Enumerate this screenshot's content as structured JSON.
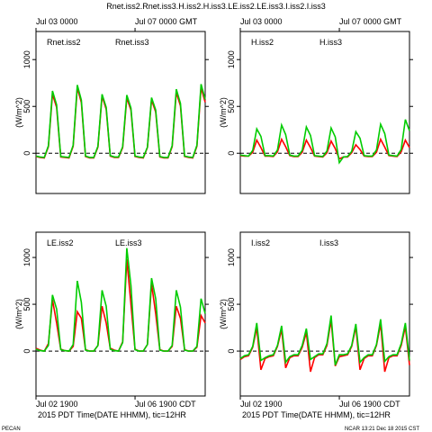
{
  "title": "Rnet.iss2.Rnet.iss3.H.iss2.H.iss3.LE.iss2.LE.iss3.I.iss2.I.iss3",
  "footer_left": "PECAN",
  "footer_right": "NCAR 13:21 Dec 18 2015 CST",
  "chart_data": [
    {
      "type": "line",
      "ylabel": "(W/m^2)",
      "xtick_side": "top",
      "zero_line": 0,
      "xlim": [
        0,
        164
      ],
      "xticks": [
        {
          "value": 0,
          "label": "Jul 03 0000"
        },
        {
          "value": 96,
          "label": "Jul 07 0000 GMT"
        }
      ],
      "ylim": [
        -430,
        1300
      ],
      "yticks": [
        0,
        500,
        1000
      ],
      "x": [
        0,
        4,
        8,
        12,
        16,
        20,
        24,
        28,
        32,
        36,
        40,
        44,
        48,
        52,
        56,
        60,
        64,
        68,
        72,
        76,
        80,
        84,
        88,
        92,
        96,
        100,
        104,
        108,
        112,
        116,
        120,
        124,
        128,
        132,
        136,
        140,
        144,
        148,
        152,
        156,
        160,
        164
      ],
      "series": [
        {
          "name": "Rnet.iss2",
          "color": "#ff0000",
          "values": [
            -35,
            -45,
            -50,
            70,
            630,
            490,
            -40,
            -45,
            -50,
            75,
            700,
            540,
            -35,
            -50,
            -50,
            65,
            610,
            470,
            -30,
            -45,
            -45,
            60,
            590,
            460,
            -35,
            -45,
            -50,
            60,
            570,
            440,
            -40,
            -50,
            -50,
            70,
            650,
            505,
            -35,
            -45,
            -50,
            75,
            700,
            545
          ]
        },
        {
          "name": "Rnet.iss3",
          "color": "#00cc00",
          "values": [
            -30,
            -40,
            -45,
            80,
            666,
            518,
            -35,
            -40,
            -45,
            85,
            729,
            567,
            -30,
            -45,
            -45,
            75,
            630,
            490,
            -25,
            -40,
            -40,
            70,
            621,
            483,
            -30,
            -40,
            -45,
            65,
            594,
            462,
            -35,
            -45,
            -45,
            80,
            684,
            532,
            -30,
            -40,
            -45,
            85,
            738,
            574
          ]
        }
      ]
    },
    {
      "type": "line",
      "ylabel": "(W/m^2)",
      "xtick_side": "top",
      "zero_line": 0,
      "xlim": [
        0,
        164
      ],
      "xticks": [
        {
          "value": 0,
          "label": "Jul 03 0000"
        },
        {
          "value": 96,
          "label": "Jul 07 0000 GMT"
        }
      ],
      "ylim": [
        -430,
        1300
      ],
      "yticks": [
        0,
        500,
        1000
      ],
      "x": [
        0,
        4,
        8,
        12,
        16,
        20,
        24,
        28,
        32,
        36,
        40,
        44,
        48,
        52,
        56,
        60,
        64,
        68,
        72,
        76,
        80,
        84,
        88,
        92,
        96,
        100,
        104,
        108,
        112,
        116,
        120,
        124,
        128,
        132,
        136,
        140,
        144,
        148,
        152,
        156,
        160,
        164
      ],
      "series": [
        {
          "name": "H.iss2",
          "color": "#ff0000",
          "values": [
            -25,
            -30,
            -30,
            10,
            140,
            60,
            -30,
            -30,
            -35,
            15,
            150,
            70,
            -25,
            -35,
            -35,
            10,
            140,
            60,
            -30,
            -35,
            -40,
            5,
            130,
            50,
            -60,
            -40,
            -40,
            5,
            90,
            40,
            -30,
            -35,
            -35,
            10,
            150,
            65,
            -25,
            -30,
            -35,
            15,
            140,
            60
          ]
        },
        {
          "name": "H.iss3",
          "color": "#00cc00",
          "values": [
            -20,
            -25,
            -30,
            30,
            260,
            180,
            -25,
            -25,
            -30,
            35,
            300,
            200,
            -20,
            -30,
            -30,
            30,
            280,
            190,
            -25,
            -30,
            -35,
            25,
            270,
            175,
            -100,
            -40,
            -35,
            20,
            230,
            160,
            -25,
            -30,
            -30,
            35,
            310,
            210,
            -20,
            -25,
            -30,
            40,
            360,
            240
          ]
        }
      ]
    },
    {
      "type": "line",
      "ylabel": "(W/m^2)",
      "xtick_side": "bottom",
      "zero_line": 0,
      "xlabel": "Time(DATE HHMM), tic=12HR",
      "xnote": "2015 PDT",
      "xlim": [
        0,
        164
      ],
      "xticks": [
        {
          "value": 0,
          "label": "Jul 02 1900"
        },
        {
          "value": 96,
          "label": "Jul 06 1900 CDT"
        }
      ],
      "ylim": [
        -480,
        1270
      ],
      "yticks": [
        0,
        500,
        1000
      ],
      "x": [
        0,
        4,
        8,
        12,
        16,
        20,
        24,
        28,
        32,
        36,
        40,
        44,
        48,
        52,
        56,
        60,
        64,
        68,
        72,
        76,
        80,
        84,
        88,
        92,
        96,
        100,
        104,
        108,
        112,
        116,
        120,
        124,
        128,
        132,
        136,
        140,
        144,
        148,
        152,
        156,
        160,
        164
      ],
      "series": [
        {
          "name": "LE.iss2",
          "color": "#ff0000",
          "values": [
            30,
            10,
            0,
            80,
            550,
            300,
            20,
            5,
            0,
            50,
            420,
            350,
            15,
            0,
            0,
            60,
            480,
            300,
            30,
            10,
            0,
            100,
            980,
            500,
            20,
            0,
            0,
            70,
            720,
            400,
            15,
            0,
            0,
            50,
            480,
            350,
            15,
            0,
            0,
            40,
            380,
            300
          ]
        },
        {
          "name": "LE.iss3",
          "color": "#00cc00",
          "values": [
            20,
            5,
            0,
            60,
            600,
            450,
            15,
            5,
            0,
            70,
            750,
            520,
            10,
            0,
            0,
            60,
            650,
            480,
            20,
            5,
            0,
            90,
            1100,
            700,
            15,
            0,
            0,
            70,
            780,
            560,
            10,
            0,
            0,
            60,
            650,
            470,
            10,
            0,
            0,
            50,
            560,
            400
          ]
        }
      ]
    },
    {
      "type": "line",
      "ylabel": "(W/m^2)",
      "xtick_side": "bottom",
      "zero_line": 0,
      "xlabel": "Time(DATE HHMM), tic=12HR",
      "xnote": "2015 PDT",
      "xlim": [
        0,
        164
      ],
      "xticks": [
        {
          "value": 0,
          "label": "Jul 02 1900"
        },
        {
          "value": 96,
          "label": "Jul 06 1900 CDT"
        }
      ],
      "ylim": [
        -480,
        1270
      ],
      "yticks": [
        0,
        500,
        1000
      ],
      "x": [
        0,
        4,
        8,
        12,
        16,
        20,
        24,
        28,
        32,
        36,
        40,
        44,
        48,
        52,
        56,
        60,
        64,
        68,
        72,
        76,
        80,
        84,
        88,
        92,
        96,
        100,
        104,
        108,
        112,
        116,
        120,
        124,
        128,
        132,
        136,
        140,
        144,
        148,
        152,
        156,
        160,
        164
      ],
      "series": [
        {
          "name": "I.iss2",
          "color": "#ff0000",
          "values": [
            -90,
            -60,
            -50,
            40,
            250,
            -200,
            -80,
            -60,
            -50,
            50,
            230,
            -180,
            -70,
            -50,
            -50,
            40,
            200,
            -220,
            -70,
            -40,
            -40,
            60,
            330,
            -160,
            -60,
            -50,
            -40,
            50,
            260,
            -200,
            -80,
            -50,
            -50,
            60,
            290,
            -220,
            -70,
            -50,
            -50,
            60,
            260,
            -150
          ]
        },
        {
          "name": "I.iss3",
          "color": "#00cc00",
          "values": [
            -80,
            -50,
            -40,
            50,
            300,
            -100,
            -70,
            -50,
            -40,
            60,
            270,
            -120,
            -60,
            -40,
            -40,
            60,
            240,
            -90,
            -60,
            -30,
            -30,
            80,
            380,
            -150,
            -40,
            -40,
            -30,
            60,
            290,
            -120,
            -70,
            -40,
            -40,
            70,
            340,
            -110,
            -60,
            -40,
            -40,
            80,
            300,
            -100
          ]
        }
      ]
    }
  ]
}
